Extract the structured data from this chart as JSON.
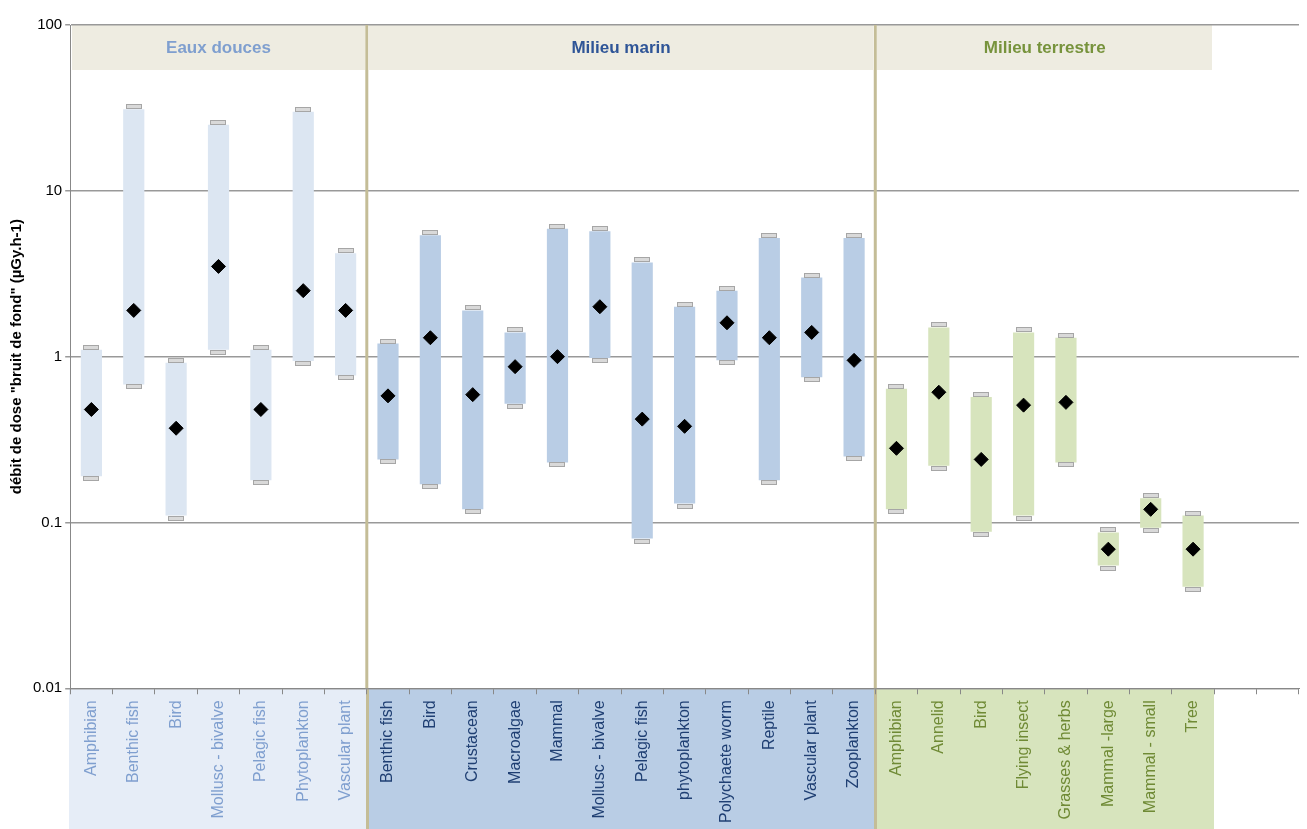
{
  "chart_data": {
    "type": "bar",
    "ylabel": "débit de dose \"bruit de fond\" (µGy.h-1)",
    "categories": [
      "Amphibian",
      "Benthic fish",
      "Bird",
      "Mollusc - bivalve",
      "Pelagic fish",
      "Phytoplankton",
      "Vascular plant",
      "Benthic fish",
      "Bird",
      "Crustacean",
      "Macroalgae",
      "Mammal",
      "Mollusc - bivalve",
      "Pelagic fish",
      "phytoplankton",
      "Polychaete worm",
      "Reptile",
      "Vascular plant",
      "Zooplankton",
      "Amphibian",
      "Annelid",
      "Bird",
      "Flying insect",
      "Grasses & herbs",
      "Mammal -large",
      "Mammal - small",
      "Tree",
      null,
      null
    ],
    "series": [
      {
        "colors": [
          "#dce6f2",
          "#dce6f2",
          "#dce6f2",
          "#dce6f2",
          "#dce6f2",
          "#dce6f2",
          "#dce6f2",
          "#b9cde5",
          "#b9cde5",
          "#b9cde5",
          "#b9cde5",
          "#b9cde5",
          "#b9cde5",
          "#b9cde5",
          "#b9cde5",
          "#b9cde5",
          "#b9cde5",
          "#b9cde5",
          "#b9cde5",
          "#d7e4bd",
          "#d7e4bd",
          "#d7e4bd",
          "#d7e4bd",
          "#d7e4bd",
          "#d7e4bd",
          "#d7e4bd",
          "#d7e4bd",
          null,
          null
        ],
        "base": [
          0.19,
          0.68,
          0.11,
          1.1,
          0.18,
          0.94,
          0.77,
          0.24,
          0.17,
          0.12,
          0.52,
          0.23,
          0.98,
          0.08,
          0.13,
          0.95,
          0.18,
          0.75,
          0.25,
          0.12,
          0.22,
          0.088,
          0.11,
          0.23,
          0.055,
          0.093,
          0.041,
          null,
          null
        ],
        "values": [
          0.91,
          30.32,
          0.81,
          23.9,
          0.92,
          29.06,
          3.43,
          0.96,
          5.23,
          1.78,
          0.88,
          5.67,
          4.72,
          3.62,
          1.87,
          1.55,
          5.02,
          2.25,
          4.95,
          0.52,
          1.28,
          0.482,
          1.29,
          1.07,
          0.032,
          0.047,
          0.069,
          null,
          null
        ]
      },
      {
        "type": "scatter",
        "color": "#000000",
        "values": [
          0.48,
          1.9,
          0.37,
          3.5,
          0.48,
          2.5,
          1.9,
          0.58,
          1.3,
          0.59,
          0.87,
          1.0,
          2.0,
          0.42,
          0.38,
          1.6,
          1.3,
          1.4,
          0.95,
          0.28,
          0.61,
          0.24,
          0.51,
          0.53,
          0.069,
          0.12,
          0.069,
          null,
          null
        ]
      }
    ],
    "annotations": [
      "Eaux douces",
      "Milieu marin",
      "Milieu terrestre"
    ],
    "ylim": [
      0.01,
      100
    ],
    "yticks": [
      0.01,
      0.1,
      1,
      10,
      100
    ],
    "log": true,
    "grid": "y",
    "legend": false,
    "marker": "diamond"
  }
}
